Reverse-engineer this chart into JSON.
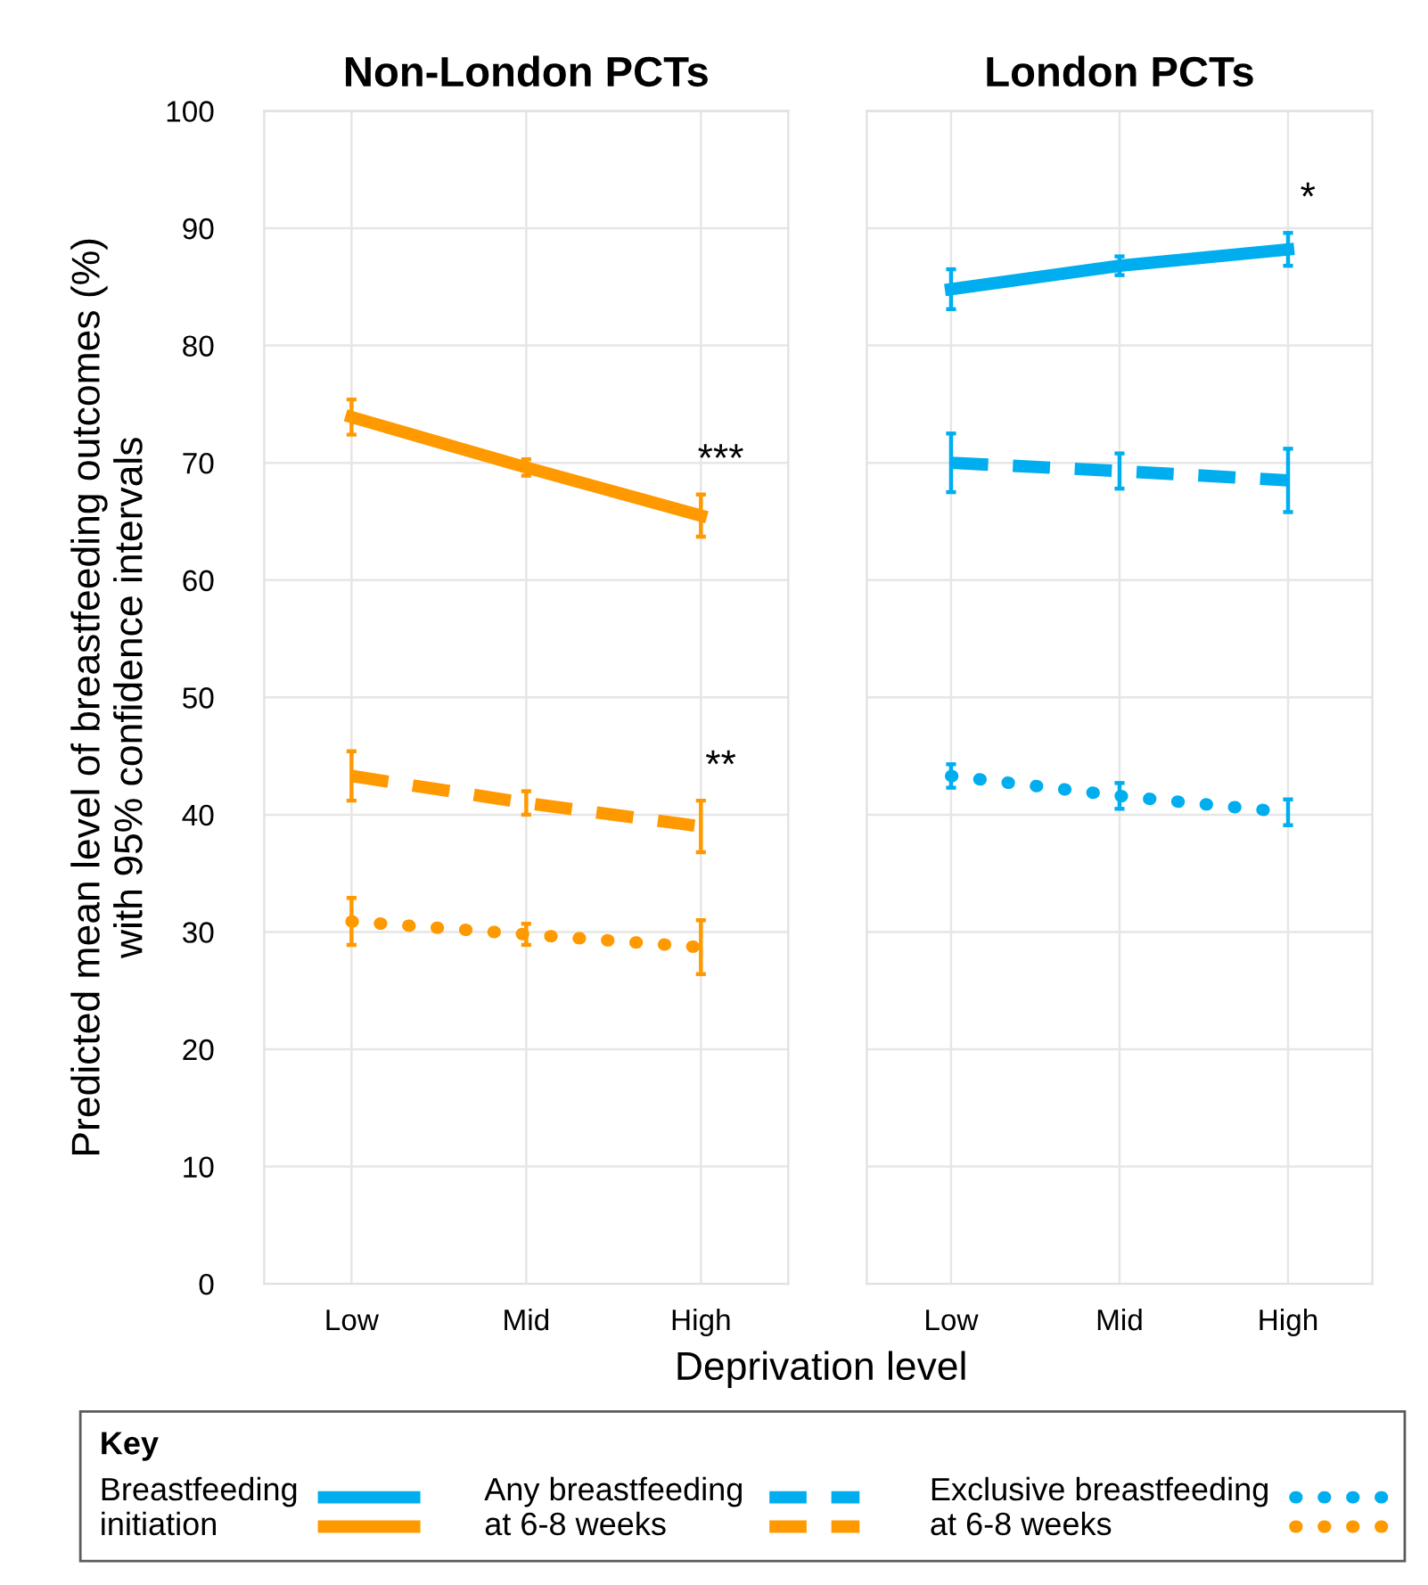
{
  "chart_data": [
    {
      "type": "line",
      "title": "Non-London PCTs",
      "xlabel": "Deprivation level",
      "ylabel": "Predicted mean level of breastfeeding outcomes (%)\nwith 95% confidence intervals",
      "legend_title": "Key",
      "legend": "bottom",
      "grid": true,
      "marker": "none",
      "categories": [
        "Low",
        "Mid",
        "High"
      ],
      "ylim": [
        0,
        100
      ],
      "yticks": [
        0,
        10,
        20,
        30,
        40,
        50,
        60,
        70,
        80,
        90,
        100
      ],
      "series": [
        {
          "name": "Breastfeeding\ninitiation",
          "color": "#ff9900",
          "line_style": "solid",
          "values": [
            73.9,
            69.6,
            65.5
          ],
          "errors": [
            1.5,
            0.7,
            1.8
          ]
        },
        {
          "name": "Any breastfeeding\nat 6-8 weeks",
          "color": "#ff9900",
          "line_style": "dashed",
          "values": [
            43.3,
            41.0,
            39.0
          ],
          "errors": [
            2.1,
            1.0,
            2.2
          ]
        },
        {
          "name": "Exclusive breastfeeding\nat 6-8 weeks",
          "color": "#ff9900",
          "line_style": "dotted",
          "values": [
            30.9,
            29.8,
            28.7
          ],
          "errors": [
            2.0,
            0.9,
            2.3
          ]
        }
      ],
      "annotations": [
        "***",
        "**"
      ]
    },
    {
      "type": "line",
      "title": "London PCTs",
      "tick_labels": "x",
      "grid": true,
      "marker": "none",
      "categories": [
        "Low",
        "Mid",
        "High"
      ],
      "ylim": [
        0,
        100
      ],
      "yticks": [
        0,
        10,
        20,
        30,
        40,
        50,
        60,
        70,
        80,
        90,
        100
      ],
      "series": [
        {
          "color": "#00aeef",
          "line_style": "solid",
          "values": [
            84.8,
            86.8,
            88.2
          ],
          "errors": [
            1.7,
            0.8,
            1.4
          ]
        },
        {
          "color": "#00aeef",
          "line_style": "dashed",
          "values": [
            70.0,
            69.3,
            68.5
          ],
          "errors": [
            2.5,
            1.5,
            2.7
          ]
        },
        {
          "color": "#00aeef",
          "line_style": "dotted",
          "values": [
            43.3,
            41.6,
            40.2
          ],
          "errors": [
            1.0,
            1.1,
            1.1
          ]
        }
      ],
      "annotations": [
        "*"
      ]
    }
  ]
}
